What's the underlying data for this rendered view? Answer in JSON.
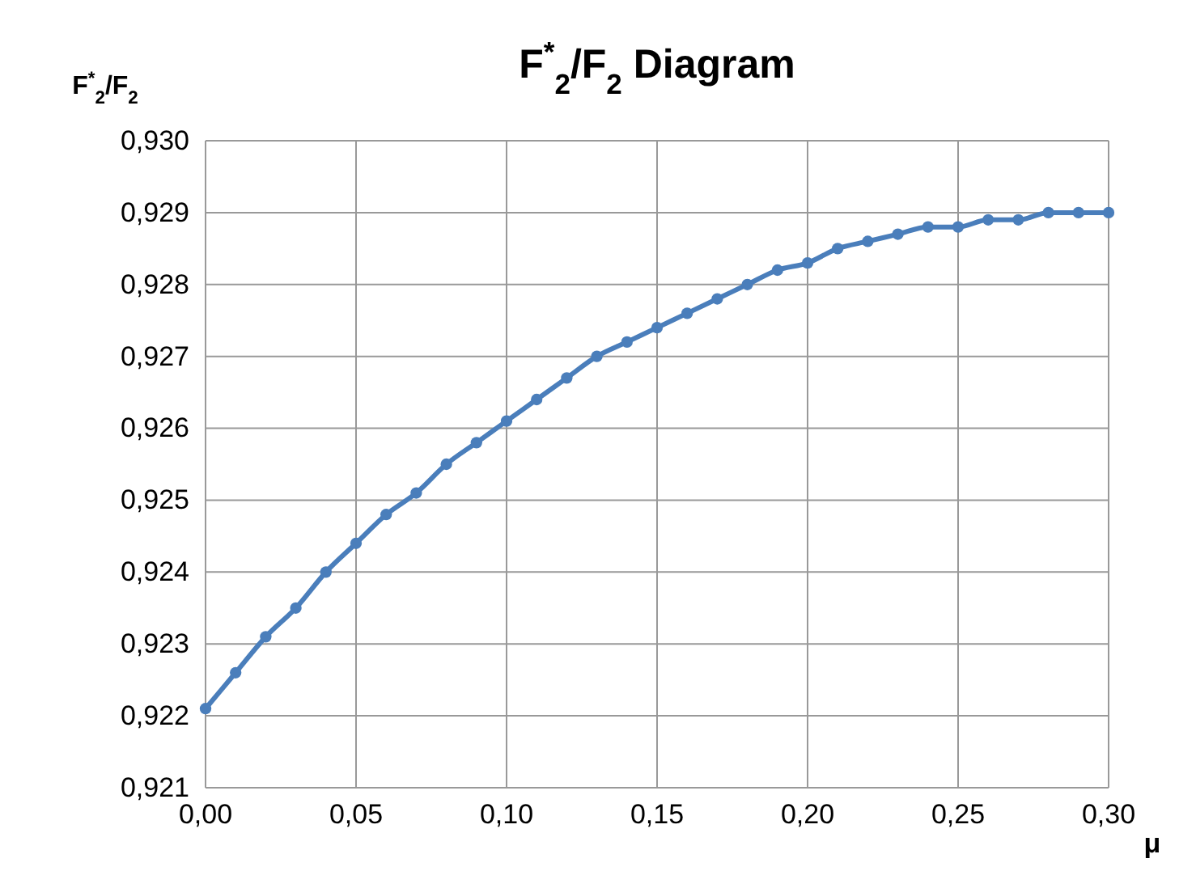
{
  "chart_data": {
    "type": "line",
    "title": "F$^{*}$$_{2}$/F$_{2}$ Diagram",
    "xlabel": "μ",
    "ylabel": "F$^{*}$$_{2}$/F$_{2}$",
    "x": [
      0,
      0.01,
      0.02,
      0.03,
      0.04,
      0.05,
      0.06,
      0.07,
      0.08,
      0.09,
      0.1,
      0.11,
      0.12,
      0.13,
      0.14,
      0.15,
      0.16,
      0.17,
      0.18,
      0.19,
      0.2,
      0.21,
      0.22,
      0.23,
      0.24,
      0.25,
      0.26,
      0.27,
      0.28,
      0.29,
      0.3
    ],
    "series": [
      {
        "color": "#4a7ebb",
        "values": [
          0.9221,
          0.9226,
          0.9231,
          0.9235,
          0.924,
          0.9244,
          0.9248,
          0.9251,
          0.9255,
          0.9258,
          0.9261,
          0.9264,
          0.9267,
          0.927,
          0.9272,
          0.9274,
          0.9276,
          0.9278,
          0.928,
          0.9282,
          0.9283,
          0.9285,
          0.9286,
          0.9287,
          0.9288,
          0.9288,
          0.9289,
          0.9289,
          0.929,
          0.929,
          0.929
        ]
      }
    ],
    "xlim": [
      0,
      0.3
    ],
    "xticks": [
      {
        "value": 0,
        "label": "0,00"
      },
      {
        "value": 0.05,
        "label": "0,05"
      },
      {
        "value": 0.1,
        "label": "0,10"
      },
      {
        "value": 0.15,
        "label": "0,15"
      },
      {
        "value": 0.2,
        "label": "0,20"
      },
      {
        "value": 0.25,
        "label": "0,25"
      },
      {
        "value": 0.3,
        "label": "0,30"
      }
    ],
    "ylim": [
      0.921,
      0.93
    ],
    "yticks": [
      {
        "value": 0.921,
        "label": "0,921"
      },
      {
        "value": 0.922,
        "label": "0,922"
      },
      {
        "value": 0.923,
        "label": "0,923"
      },
      {
        "value": 0.924,
        "label": "0,924"
      },
      {
        "value": 0.925,
        "label": "0,925"
      },
      {
        "value": 0.926,
        "label": "0,926"
      },
      {
        "value": 0.927,
        "label": "0,927"
      },
      {
        "value": 0.928,
        "label": "0,928"
      },
      {
        "value": 0.929,
        "label": "0,929"
      },
      {
        "value": 0.93,
        "label": "0,930"
      }
    ],
    "grid": true,
    "marker": "circle",
    "line_style": "solid"
  }
}
